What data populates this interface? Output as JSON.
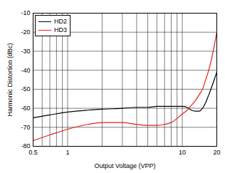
{
  "chart_data": {
    "type": "line",
    "x_label": "Output Voltage (VPP)",
    "y_label": "Harmonic Distortion (dBc)",
    "log": "x",
    "grid": true,
    "legend": "upper left",
    "xlim": [
      0.5,
      20
    ],
    "xticks": [
      0.5,
      1,
      10,
      20
    ],
    "ylim": [
      -80,
      -10
    ],
    "yticks": [
      -80,
      -70,
      -60,
      -50,
      -40,
      -30,
      -20,
      -10
    ],
    "x": [
      0.5,
      0.7,
      1,
      1.5,
      2,
      3,
      4,
      5,
      6,
      7,
      8,
      10,
      11,
      12,
      13,
      14,
      15,
      16,
      17,
      18,
      20
    ],
    "series": [
      {
        "name": "HD2",
        "color": "#000000",
        "line_style": "solid",
        "values": [
          -65,
          -63.5,
          -62,
          -61,
          -60.5,
          -60,
          -59.5,
          -59.5,
          -59,
          -59,
          -59,
          -59,
          -59.5,
          -61,
          -61.5,
          -61.5,
          -60,
          -57,
          -53,
          -49,
          -41
        ]
      },
      {
        "name": "HD3",
        "color": "#e0201b",
        "line_style": "solid",
        "values": [
          -77,
          -74,
          -71,
          -68.5,
          -67.5,
          -67.5,
          -68.5,
          -69,
          -69,
          -68.5,
          -67.5,
          -63,
          -61,
          -58.5,
          -56,
          -53,
          -50,
          -45,
          -40,
          -34,
          -20
        ]
      }
    ]
  }
}
